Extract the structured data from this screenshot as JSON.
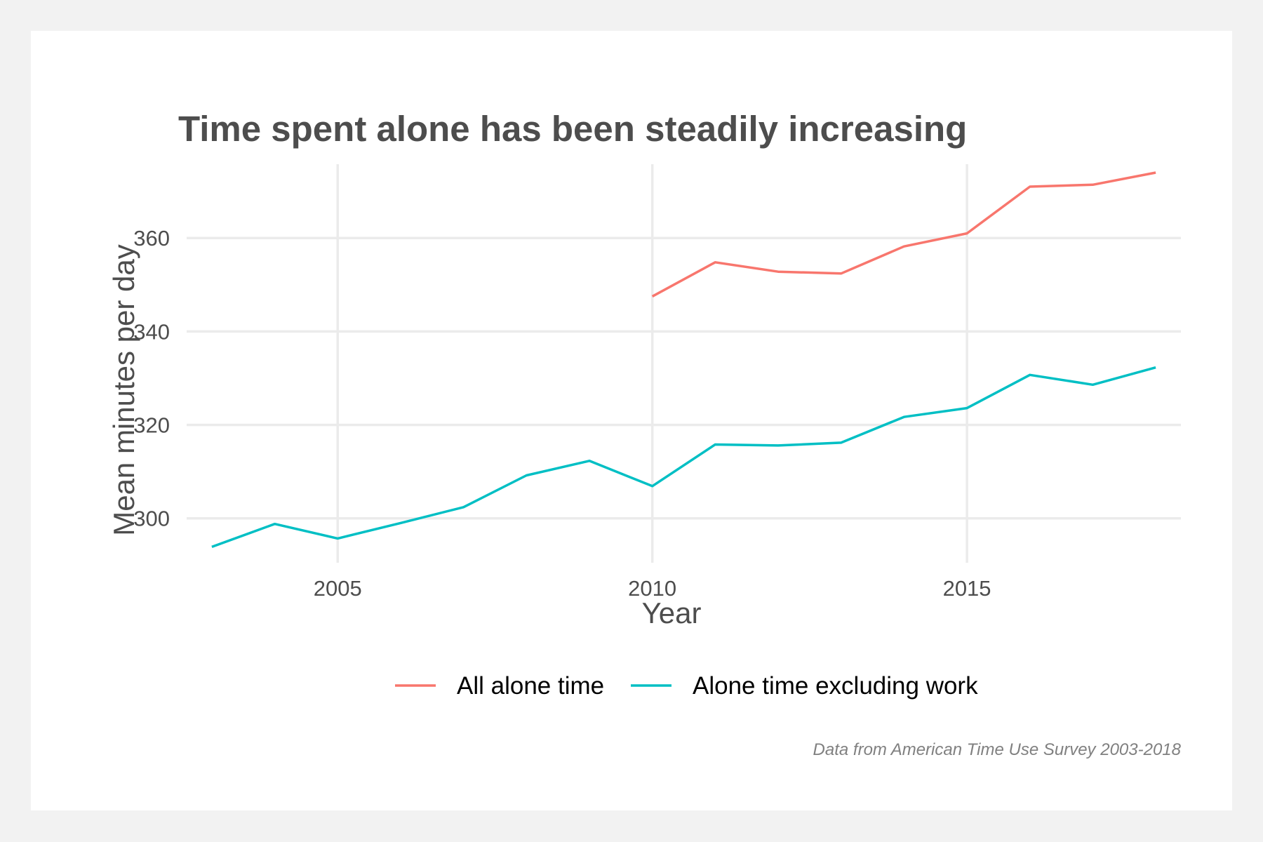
{
  "chart_data": {
    "type": "line",
    "title": "Time spent alone has been steadily increasing",
    "xlabel": "Year",
    "ylabel": "Mean minutes per day",
    "caption": "Data from American Time Use Survey 2003-2018",
    "xlim": [
      2002.6,
      2018.4
    ],
    "ylim": [
      290.5,
      375.8
    ],
    "xticks": [
      2005,
      2010,
      2015
    ],
    "yticks": [
      300,
      320,
      340,
      360
    ],
    "grid": true,
    "legend_position": "bottom",
    "series": [
      {
        "name": "All alone time",
        "color": "#f8766d",
        "x": [
          2010,
          2011,
          2012,
          2013,
          2014,
          2015,
          2016,
          2017,
          2018
        ],
        "y": [
          347.5,
          354.8,
          352.8,
          352.4,
          358.2,
          361.0,
          371.0,
          371.4,
          374.0
        ]
      },
      {
        "name": "Alone time excluding work",
        "color": "#00bfc4",
        "x": [
          2003,
          2004,
          2005,
          2006,
          2007,
          2008,
          2009,
          2010,
          2011,
          2012,
          2013,
          2014,
          2015,
          2016,
          2017,
          2018
        ],
        "y": [
          293.9,
          298.8,
          295.7,
          299.0,
          302.4,
          309.2,
          312.3,
          306.9,
          315.8,
          315.6,
          316.2,
          321.7,
          323.6,
          330.7,
          328.6,
          332.3
        ]
      }
    ]
  }
}
